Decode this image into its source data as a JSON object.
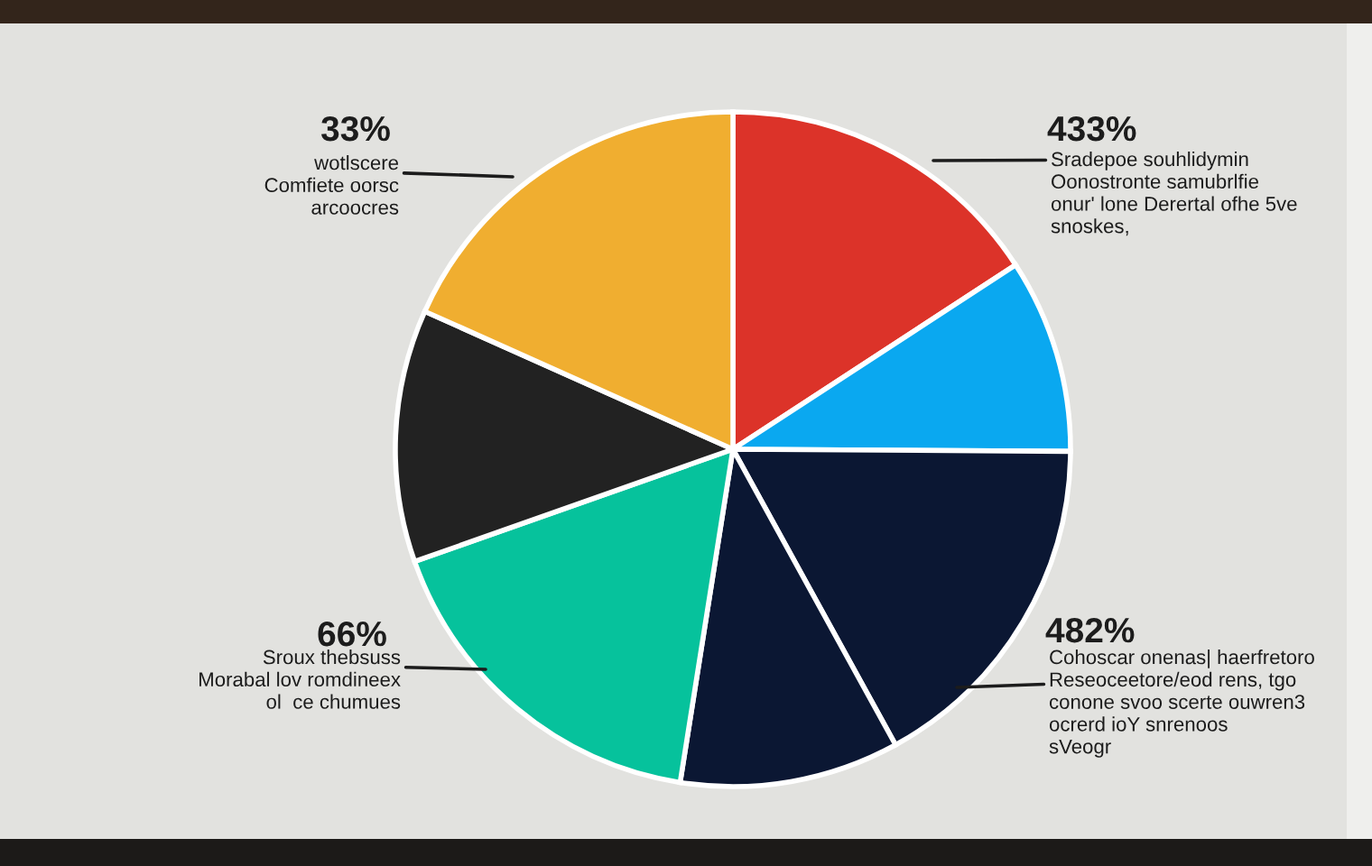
{
  "chart_data": {
    "type": "pie",
    "categories": [
      null,
      null,
      null,
      null,
      null,
      null,
      null
    ],
    "values": [
      15.8,
      9.3,
      16.9,
      10.5,
      17.1,
      12.1,
      18.3
    ],
    "colors": [
      "#dc3329",
      "#0aa8f0",
      "#0b1733",
      "#0b1733",
      "#06c29c",
      "#222222",
      "#f0ae30"
    ],
    "annotations": [
      "33%",
      "wotlscere\nComfiete oorsc\narcoocres",
      "433%",
      "Sradepoe souhlidymin\nOonostronte samubrlfie\nonur' lone Derertal ofhe 5ve\nsnoskes,",
      "66%",
      "Sroux thebsuss\nMorabal lov romdineex\nol  ce chumues",
      "482%",
      "Cohoscar onenas| haerfretoro\nReseoceetore/eod rens, tgo\nconone svoo scerte ouwren3\nocrerd ioY snrenoos\nsVeogr"
    ]
  }
}
